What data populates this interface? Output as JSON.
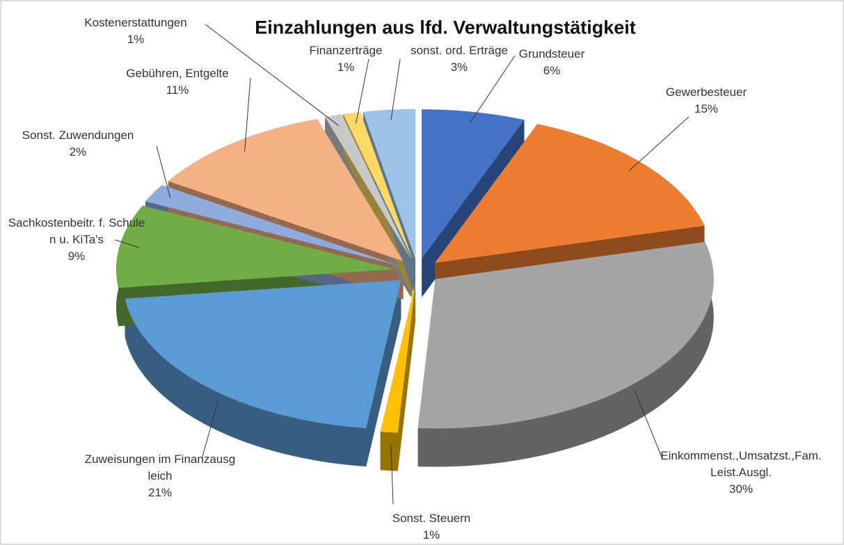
{
  "chart_data": {
    "type": "pie",
    "title": "Einzahlungen aus lfd. Verwaltungstätigkeit",
    "categories": [
      "Grundsteuer",
      "Gewerbesteuer",
      "Einkommenst.,Umsatzst.,Fam.Leist.Ausgl.",
      "Sonst. Steuern",
      "Zuweisungen im Finanzausgleich",
      "Sachkostenbeitr. f. Schulen u. KiTa's",
      "Sonst. Zuwendungen",
      "Gebühren, Entgelte",
      "Kostenerstattungen",
      "Finanzerträge",
      "sonst. ord. Erträge"
    ],
    "values": [
      6,
      15,
      30,
      1,
      21,
      9,
      2,
      11,
      1,
      1,
      3
    ],
    "value_labels": [
      "6%",
      "15%",
      "30%",
      "1%",
      "21%",
      "9%",
      "2%",
      "11%",
      "1%",
      "1%",
      "3%"
    ],
    "colors": [
      "#4472c4",
      "#ed7d31",
      "#a5a5a5",
      "#ffc000",
      "#5b9bd5",
      "#70ad47",
      "#8faadc",
      "#f4b183",
      "#c9c9c9",
      "#ffd966",
      "#9dc3e6"
    ]
  }
}
